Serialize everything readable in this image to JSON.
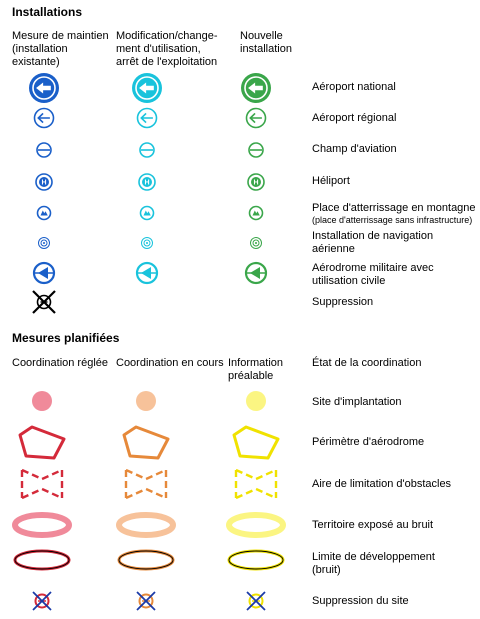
{
  "sections": {
    "installations": "Installations",
    "mesures": "Mesures planifiées"
  },
  "installations_columns": [
    "Mesure de maintien\n(installation\nexistante)",
    "Modification/change-\nment d'utilisation,\narrêt de l'exploitation",
    "Nouvelle\ninstallation"
  ],
  "installations_rows": [
    {
      "label": "Aéroport national",
      "icon": "airport-national-icon"
    },
    {
      "label": "Aéroport régional",
      "icon": "airport-regional-icon"
    },
    {
      "label": "Champ d'aviation",
      "icon": "airfield-icon"
    },
    {
      "label": "Héliport",
      "icon": "heliport-icon"
    },
    {
      "label": "Place d'atterrissage en montagne",
      "sublabel": "(place d'atterrissage sans infrastructure)",
      "icon": "mountain-landing-icon"
    },
    {
      "label": "Installation de navigation\naérienne",
      "icon": "navigation-installation-icon"
    },
    {
      "label": "Aérodrome militaire avec\nutilisation civile",
      "icon": "military-aerodrome-icon"
    },
    {
      "label": "Suppression",
      "icon": "suppression-icon"
    }
  ],
  "installations_colors": [
    "#1a5fc9",
    "#19c3dc",
    "#3aa64a"
  ],
  "mesures_columns": [
    "Coordination réglée",
    "Coordination en cours",
    "Information\npréalable"
  ],
  "mesures_header_label": "État de la coordination",
  "mesures_rows": [
    {
      "label": "Site d'implantation",
      "icon": "site-icon"
    },
    {
      "label": "Périmètre d'aérodrome",
      "icon": "perimeter-icon"
    },
    {
      "label": "Aire de limitation d'obstacles",
      "icon": "obstacle-area-icon"
    },
    {
      "label": "Territoire exposé au bruit",
      "icon": "noise-territory-icon"
    },
    {
      "label": "Limite de développement\n(bruit)",
      "icon": "development-limit-icon"
    },
    {
      "label": "Suppression du site",
      "icon": "site-suppression-icon"
    }
  ],
  "mesures_colors": {
    "fill": [
      "#f08a9a",
      "#f7c29a",
      "#fbf582"
    ],
    "stroke": [
      "#d42a3a",
      "#e6893a",
      "#f0e200"
    ]
  }
}
